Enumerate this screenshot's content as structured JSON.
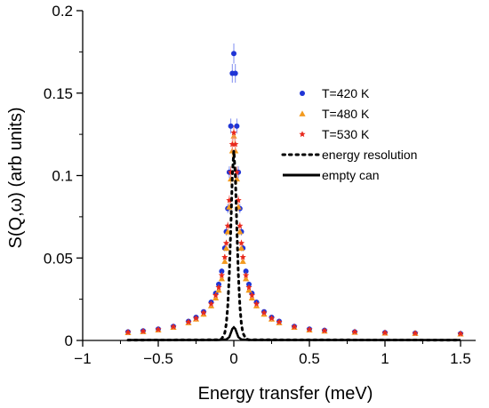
{
  "chart_data": {
    "type": "scatter",
    "xlabel": "Energy transfer (meV)",
    "ylabel": "S(Q,ω) (arb units)",
    "xlim": [
      -1,
      1.6
    ],
    "ylim": [
      0,
      0.2
    ],
    "xticks": [
      "−1",
      "−0.5",
      "0",
      "0.5",
      "1",
      "1.5"
    ],
    "xtick_values": [
      -1,
      -0.5,
      0,
      0.5,
      1,
      1.5
    ],
    "yticks": [
      "0",
      "0.05",
      "0.1",
      "0.15",
      "0.2"
    ],
    "ytick_values": [
      0,
      0.05,
      0.1,
      0.15,
      0.2
    ],
    "grid": false,
    "legend_position": "top-right",
    "series": [
      {
        "name": "T=420 K",
        "style": "points",
        "marker": "circle",
        "color": "#1f35d6",
        "errorbar_color": "#7f8cf0",
        "points": [
          [
            -0.7,
            0.0052
          ],
          [
            -0.6,
            0.0058
          ],
          [
            -0.5,
            0.0069
          ],
          [
            -0.4,
            0.0085
          ],
          [
            -0.3,
            0.0116
          ],
          [
            -0.25,
            0.014
          ],
          [
            -0.2,
            0.0174
          ],
          [
            -0.15,
            0.0232
          ],
          [
            -0.12,
            0.0286
          ],
          [
            -0.1,
            0.034
          ],
          [
            -0.08,
            0.042
          ],
          [
            -0.06,
            0.056
          ],
          [
            -0.05,
            0.066
          ],
          [
            -0.04,
            0.08
          ],
          [
            -0.03,
            0.102
          ],
          [
            -0.02,
            0.13
          ],
          [
            -0.01,
            0.162
          ],
          [
            0.0,
            0.174
          ],
          [
            0.01,
            0.162
          ],
          [
            0.02,
            0.13
          ],
          [
            0.03,
            0.102
          ],
          [
            0.04,
            0.08
          ],
          [
            0.05,
            0.066
          ],
          [
            0.06,
            0.056
          ],
          [
            0.08,
            0.042
          ],
          [
            0.1,
            0.034
          ],
          [
            0.12,
            0.0286
          ],
          [
            0.15,
            0.0232
          ],
          [
            0.2,
            0.0174
          ],
          [
            0.25,
            0.014
          ],
          [
            0.3,
            0.0116
          ],
          [
            0.4,
            0.0085
          ],
          [
            0.5,
            0.0069
          ],
          [
            0.6,
            0.0061
          ],
          [
            0.8,
            0.0052
          ],
          [
            1.0,
            0.0047
          ],
          [
            1.2,
            0.0044
          ],
          [
            1.5,
            0.0041
          ]
        ]
      },
      {
        "name": "T=480 K",
        "style": "points",
        "marker": "triangle",
        "color": "#f39a1e",
        "errorbar_color": "#f7c27c",
        "points": [
          [
            -0.7,
            0.0048
          ],
          [
            -0.6,
            0.0054
          ],
          [
            -0.5,
            0.0064
          ],
          [
            -0.4,
            0.008
          ],
          [
            -0.3,
            0.0108
          ],
          [
            -0.25,
            0.013
          ],
          [
            -0.2,
            0.016
          ],
          [
            -0.15,
            0.021
          ],
          [
            -0.12,
            0.0258
          ],
          [
            -0.1,
            0.0305
          ],
          [
            -0.08,
            0.0375
          ],
          [
            -0.06,
            0.048
          ],
          [
            -0.05,
            0.056
          ],
          [
            -0.04,
            0.066
          ],
          [
            -0.03,
            0.081
          ],
          [
            -0.02,
            0.098
          ],
          [
            -0.01,
            0.115
          ],
          [
            0.0,
            0.124
          ],
          [
            0.01,
            0.115
          ],
          [
            0.02,
            0.098
          ],
          [
            0.03,
            0.081
          ],
          [
            0.04,
            0.066
          ],
          [
            0.05,
            0.056
          ],
          [
            0.06,
            0.048
          ],
          [
            0.08,
            0.0375
          ],
          [
            0.1,
            0.0305
          ],
          [
            0.12,
            0.0258
          ],
          [
            0.15,
            0.021
          ],
          [
            0.2,
            0.016
          ],
          [
            0.25,
            0.013
          ],
          [
            0.3,
            0.0108
          ],
          [
            0.4,
            0.008
          ],
          [
            0.5,
            0.0064
          ],
          [
            0.6,
            0.0057
          ],
          [
            0.8,
            0.005
          ],
          [
            1.0,
            0.0045
          ],
          [
            1.2,
            0.0043
          ],
          [
            1.5,
            0.004
          ]
        ]
      },
      {
        "name": "T=530 K",
        "style": "points",
        "marker": "star",
        "color": "#e8291d",
        "errorbar_color": "#f28a84",
        "points": [
          [
            -0.7,
            0.005
          ],
          [
            -0.6,
            0.0056
          ],
          [
            -0.5,
            0.0067
          ],
          [
            -0.4,
            0.0083
          ],
          [
            -0.3,
            0.0112
          ],
          [
            -0.25,
            0.0135
          ],
          [
            -0.2,
            0.0168
          ],
          [
            -0.15,
            0.0222
          ],
          [
            -0.12,
            0.0274
          ],
          [
            -0.1,
            0.0322
          ],
          [
            -0.08,
            0.0395
          ],
          [
            -0.06,
            0.0505
          ],
          [
            -0.05,
            0.059
          ],
          [
            -0.04,
            0.0695
          ],
          [
            -0.03,
            0.085
          ],
          [
            -0.02,
            0.102
          ],
          [
            -0.01,
            0.119
          ],
          [
            0.0,
            0.126
          ],
          [
            0.01,
            0.119
          ],
          [
            0.02,
            0.102
          ],
          [
            0.03,
            0.085
          ],
          [
            0.04,
            0.0695
          ],
          [
            0.05,
            0.059
          ],
          [
            0.06,
            0.0505
          ],
          [
            0.08,
            0.0395
          ],
          [
            0.1,
            0.0322
          ],
          [
            0.12,
            0.0274
          ],
          [
            0.15,
            0.0222
          ],
          [
            0.2,
            0.0168
          ],
          [
            0.25,
            0.0135
          ],
          [
            0.3,
            0.0112
          ],
          [
            0.4,
            0.0083
          ],
          [
            0.5,
            0.0067
          ],
          [
            0.6,
            0.006
          ],
          [
            0.8,
            0.0052
          ],
          [
            1.0,
            0.0047
          ],
          [
            1.2,
            0.0044
          ],
          [
            1.5,
            0.0041
          ]
        ]
      },
      {
        "name": "energy resolution",
        "style": "dotted-line",
        "color": "#000000",
        "points": [
          [
            -0.7,
            0.0002
          ],
          [
            -0.1,
            0.0004
          ],
          [
            -0.08,
            0.001
          ],
          [
            -0.06,
            0.0045
          ],
          [
            -0.05,
            0.01
          ],
          [
            -0.04,
            0.021
          ],
          [
            -0.03,
            0.04
          ],
          [
            -0.02,
            0.068
          ],
          [
            -0.01,
            0.1
          ],
          [
            0.0,
            0.115
          ],
          [
            0.01,
            0.1
          ],
          [
            0.02,
            0.068
          ],
          [
            0.03,
            0.04
          ],
          [
            0.04,
            0.021
          ],
          [
            0.05,
            0.01
          ],
          [
            0.06,
            0.0045
          ],
          [
            0.08,
            0.001
          ],
          [
            0.1,
            0.0004
          ],
          [
            1.5,
            0.0002
          ]
        ]
      },
      {
        "name": "empty can",
        "style": "solid-line",
        "color": "#000000",
        "points": [
          [
            -0.7,
            0.0003
          ],
          [
            -0.1,
            0.0003
          ],
          [
            -0.05,
            0.0006
          ],
          [
            -0.03,
            0.002
          ],
          [
            -0.02,
            0.0045
          ],
          [
            -0.01,
            0.007
          ],
          [
            0.0,
            0.008
          ],
          [
            0.01,
            0.007
          ],
          [
            0.02,
            0.0045
          ],
          [
            0.03,
            0.002
          ],
          [
            0.05,
            0.0006
          ],
          [
            0.1,
            0.0003
          ],
          [
            1.5,
            0.0003
          ]
        ]
      }
    ]
  }
}
